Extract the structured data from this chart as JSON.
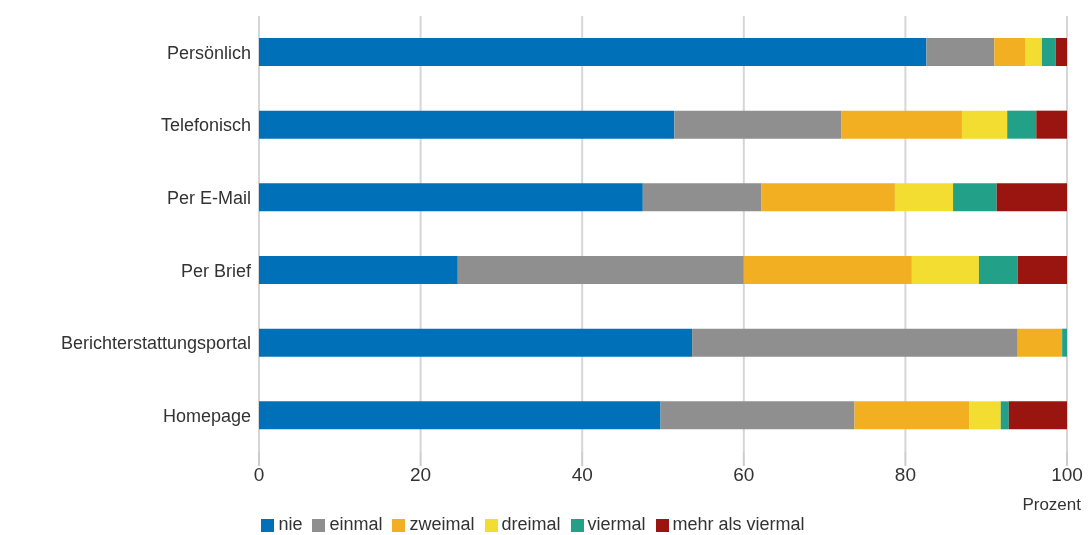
{
  "chart_data": {
    "type": "bar",
    "orientation": "horizontal",
    "stacked": true,
    "xlabel": "Prozent",
    "categories": [
      "Persönlich",
      "Telefonisch",
      "Per E-Mail",
      "Per Brief",
      "Berichterstattungsportal",
      "Homepage"
    ],
    "series": [
      {
        "name": "nie",
        "color": "#0070b8",
        "values": [
          82.6,
          51.4,
          47.5,
          24.6,
          53.6,
          49.7
        ]
      },
      {
        "name": "einmal",
        "color": "#8f8f8f",
        "values": [
          8.4,
          20.7,
          14.7,
          35.4,
          40.3,
          24.0
        ]
      },
      {
        "name": "zweimal",
        "color": "#f2af22",
        "values": [
          3.8,
          14.9,
          16.5,
          20.8,
          5.5,
          14.2
        ]
      },
      {
        "name": "dreimal",
        "color": "#f2dd30",
        "values": [
          2.1,
          5.6,
          7.2,
          8.3,
          0,
          3.9
        ]
      },
      {
        "name": "viermal",
        "color": "#22a088",
        "values": [
          1.7,
          3.6,
          5.4,
          4.8,
          0.6,
          1.0
        ]
      },
      {
        "name": "mehr als viermal",
        "color": "#9a1410",
        "values": [
          1.4,
          3.8,
          8.7,
          6.1,
          0,
          7.2
        ]
      }
    ],
    "xlim": [
      0,
      100
    ],
    "xticks": [
      0,
      20,
      40,
      60,
      80,
      100
    ],
    "grid": "x",
    "legend": "bottom"
  }
}
